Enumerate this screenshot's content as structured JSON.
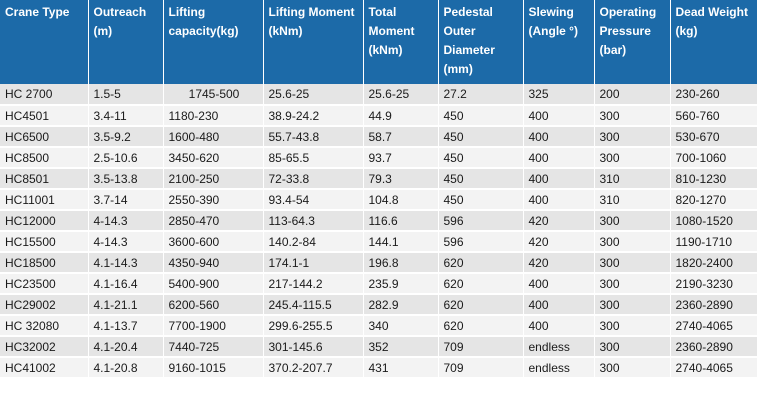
{
  "table": {
    "headers": [
      "Crane Type",
      "Outreach (m)",
      "Lifting capacity(kg)",
      "Lifting Moment (kNm)",
      "Total Moment (kNm)",
      "Pedestal Outer Diameter (mm)",
      "Slewing (Angle °)",
      "Operating Pressure (bar)",
      "Dead Weight (kg)"
    ],
    "rows": [
      [
        "HC 2700",
        "1.5-5",
        "1745-500",
        "25.6-25",
        "25.6-25",
        "27.2",
        "325",
        "200",
        "230-260"
      ],
      [
        "HC4501",
        "3.4-11",
        "1180-230",
        "38.9-24.2",
        "44.9",
        "450",
        "400",
        "300",
        "560-760"
      ],
      [
        "HC6500",
        "3.5-9.2",
        "1600-480",
        "55.7-43.8",
        "58.7",
        "450",
        "400",
        "300",
        "530-670"
      ],
      [
        "HC8500",
        "2.5-10.6",
        "3450-620",
        "85-65.5",
        "93.7",
        "450",
        "400",
        "300",
        "700-1060"
      ],
      [
        "HC8501",
        "3.5-13.8",
        "2100-250",
        "72-33.8",
        "79.3",
        "450",
        "400",
        "310",
        "810-1230"
      ],
      [
        "HC11001",
        "3.7-14",
        "2550-390",
        "93.4-54",
        "104.8",
        "450",
        "400",
        "310",
        "820-1270"
      ],
      [
        "HC12000",
        "4-14.3",
        "2850-470",
        "113-64.3",
        "116.6",
        "596",
        "420",
        "300",
        "1080-1520"
      ],
      [
        "HC15500",
        "4-14.3",
        "3600-600",
        "140.2-84",
        "144.1",
        "596",
        "420",
        "300",
        "1190-1710"
      ],
      [
        "HC18500",
        "4.1-14.3",
        "4350-940",
        "174.1-1",
        "196.8",
        "620",
        "420",
        "300",
        "1820-2400"
      ],
      [
        "HC23500",
        "4.1-16.4",
        "5400-900",
        "217-144.2",
        "235.9",
        "620",
        "400",
        "300",
        "2190-3230"
      ],
      [
        "HC29002",
        "4.1-21.1",
        "6200-560",
        "245.4-115.5",
        "282.9",
        "620",
        "400",
        "300",
        "2360-2890"
      ],
      [
        "HC 32080",
        "4.1-13.7",
        "7700-1900",
        "299.6-255.5",
        "340",
        "620",
        "400",
        "300",
        "2740-4065"
      ],
      [
        "HC32002",
        "4.1-20.4",
        "7440-725",
        "301-145.6",
        "352",
        "709",
        "endless",
        "300",
        "2360-2890"
      ],
      [
        "HC41002",
        "4.1-20.8",
        "9160-1015",
        "370.2-207.7",
        "431",
        "709",
        "endless",
        "300",
        "2740-4065"
      ]
    ]
  }
}
